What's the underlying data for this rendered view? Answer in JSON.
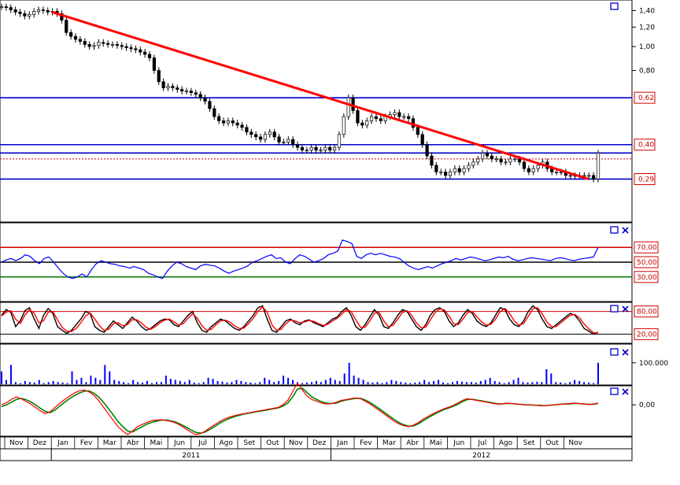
{
  "colors": {
    "background": "#ffffff",
    "trendline": "#ff0000",
    "hline": "#0000cc",
    "rsi": "#0000ff",
    "stoch_k": "#000000",
    "stoch_d": "#ff0000",
    "volume": "#0000ff",
    "macd": "#ff0000",
    "signal": "#008000",
    "ref_red": "#cc0000",
    "ref_green": "#007700",
    "candle_up": "#ffffff",
    "candle_down": "#000000"
  },
  "icons": {
    "maximize": "maximize-icon",
    "close": "close-icon"
  },
  "x_axis": {
    "months": [
      "Nov",
      "Dez",
      "Jan",
      "Fev",
      "Mar",
      "Abr",
      "Mai",
      "Jun",
      "Jul",
      "Ago",
      "Set",
      "Out",
      "Nov",
      "Dez",
      "Jan",
      "Fev",
      "Mar",
      "Abr",
      "Mai",
      "Jun",
      "Jul",
      "Ago",
      "Set",
      "Out",
      "Nov"
    ],
    "years": [
      "2011",
      "2012"
    ]
  },
  "chart_data": [
    {
      "type": "candlestick",
      "name": "price",
      "y_ticks": [
        "1,40",
        "1,20",
        "1,00",
        "0,80"
      ],
      "ylim": [
        0.2,
        1.5
      ],
      "log_scale": true,
      "level_labels": [
        "0,62",
        "0,40",
        "0,29"
      ],
      "hlines": [
        0.62,
        0.4,
        0.37,
        0.29
      ],
      "dotted_level": 0.35,
      "trendline": [
        {
          "date": "Jan 2011",
          "value": 1.38
        },
        {
          "date": "Nov 2012",
          "value": 0.29
        }
      ],
      "close": [
        1.45,
        1.44,
        1.41,
        1.38,
        1.36,
        1.33,
        1.35,
        1.39,
        1.41,
        1.4,
        1.38,
        1.39,
        1.36,
        1.28,
        1.14,
        1.1,
        1.07,
        1.05,
        1.02,
        1.0,
        1.01,
        1.04,
        1.03,
        1.02,
        1.02,
        1.01,
        1.0,
        0.99,
        0.98,
        0.97,
        0.95,
        0.93,
        0.9,
        0.8,
        0.72,
        0.68,
        0.69,
        0.68,
        0.67,
        0.66,
        0.66,
        0.65,
        0.64,
        0.62,
        0.6,
        0.56,
        0.52,
        0.5,
        0.49,
        0.5,
        0.49,
        0.48,
        0.47,
        0.45,
        0.44,
        0.43,
        0.42,
        0.44,
        0.45,
        0.43,
        0.41,
        0.41,
        0.42,
        0.4,
        0.39,
        0.38,
        0.38,
        0.39,
        0.38,
        0.38,
        0.39,
        0.38,
        0.39,
        0.44,
        0.52,
        0.62,
        0.55,
        0.49,
        0.48,
        0.5,
        0.52,
        0.51,
        0.5,
        0.52,
        0.53,
        0.54,
        0.52,
        0.52,
        0.51,
        0.47,
        0.44,
        0.4,
        0.36,
        0.33,
        0.31,
        0.31,
        0.3,
        0.31,
        0.32,
        0.31,
        0.32,
        0.33,
        0.34,
        0.35,
        0.37,
        0.36,
        0.35,
        0.35,
        0.34,
        0.34,
        0.35,
        0.35,
        0.34,
        0.32,
        0.31,
        0.32,
        0.33,
        0.34,
        0.32,
        0.31,
        0.31,
        0.31,
        0.3,
        0.3,
        0.3,
        0.3,
        0.3,
        0.3,
        0.29,
        0.37
      ]
    },
    {
      "type": "line",
      "name": "rsi",
      "reference_lines": [
        "70,00",
        "50,00",
        "30,00"
      ],
      "levels": [
        70,
        50,
        30
      ],
      "ylim": [
        0,
        100
      ],
      "values": [
        50,
        53,
        55,
        52,
        55,
        60,
        58,
        52,
        48,
        55,
        57,
        50,
        42,
        35,
        30,
        28,
        30,
        34,
        30,
        40,
        48,
        52,
        50,
        48,
        47,
        45,
        44,
        42,
        44,
        42,
        40,
        35,
        33,
        30,
        28,
        38,
        45,
        50,
        48,
        44,
        42,
        40,
        45,
        47,
        46,
        45,
        42,
        38,
        35,
        38,
        40,
        42,
        45,
        50,
        52,
        55,
        58,
        60,
        55,
        56,
        50,
        48,
        55,
        60,
        58,
        54,
        50,
        52,
        55,
        60,
        62,
        65,
        80,
        78,
        75,
        58,
        55,
        60,
        62,
        60,
        62,
        60,
        58,
        57,
        55,
        50,
        45,
        42,
        40,
        42,
        44,
        42,
        45,
        48,
        50,
        52,
        55,
        53,
        55,
        57,
        56,
        54,
        52,
        53,
        55,
        57,
        56,
        58,
        54,
        52,
        53,
        55,
        56,
        55,
        54,
        53,
        52,
        55,
        56,
        55,
        53,
        52,
        54,
        55,
        56,
        57,
        70
      ]
    },
    {
      "type": "line",
      "name": "stochastic",
      "reference_lines": [
        "80,00",
        "20,00"
      ],
      "levels": [
        80,
        20
      ],
      "ylim": [
        0,
        100
      ],
      "series": [
        {
          "name": "%K",
          "values": [
            70,
            85,
            78,
            40,
            55,
            82,
            90,
            60,
            35,
            70,
            88,
            75,
            40,
            30,
            22,
            30,
            45,
            60,
            80,
            75,
            40,
            30,
            25,
            40,
            55,
            45,
            35,
            50,
            65,
            55,
            40,
            30,
            35,
            45,
            55,
            60,
            58,
            45,
            40,
            55,
            70,
            80,
            50,
            30,
            25,
            40,
            50,
            60,
            55,
            45,
            35,
            30,
            40,
            55,
            70,
            90,
            95,
            60,
            30,
            25,
            40,
            55,
            60,
            50,
            45,
            55,
            58,
            50,
            45,
            40,
            50,
            60,
            65,
            80,
            90,
            70,
            40,
            30,
            45,
            65,
            85,
            70,
            40,
            35,
            50,
            70,
            85,
            80,
            60,
            40,
            30,
            45,
            70,
            85,
            90,
            80,
            55,
            40,
            50,
            70,
            85,
            75,
            55,
            45,
            40,
            50,
            70,
            90,
            85,
            60,
            45,
            40,
            55,
            80,
            95,
            85,
            60,
            40,
            35,
            45,
            55,
            65,
            75,
            70,
            55,
            35,
            28,
            20,
            25
          ]
        },
        {
          "name": "%D",
          "values": [
            68,
            78,
            82,
            60,
            48,
            70,
            85,
            75,
            50,
            55,
            78,
            80,
            58,
            38,
            28,
            27,
            35,
            50,
            68,
            76,
            60,
            42,
            30,
            33,
            48,
            50,
            42,
            45,
            58,
            58,
            50,
            38,
            33,
            40,
            50,
            57,
            60,
            52,
            44,
            48,
            62,
            74,
            62,
            42,
            30,
            33,
            45,
            55,
            57,
            52,
            42,
            35,
            36,
            48,
            62,
            80,
            92,
            78,
            45,
            30,
            33,
            48,
            57,
            55,
            50,
            52,
            56,
            54,
            48,
            43,
            46,
            55,
            62,
            73,
            85,
            80,
            58,
            38,
            38,
            55,
            75,
            78,
            55,
            40,
            43,
            60,
            77,
            82,
            70,
            50,
            37,
            38,
            58,
            77,
            87,
            84,
            68,
            48,
            45,
            60,
            77,
            80,
            66,
            52,
            44,
            46,
            60,
            80,
            88,
            75,
            55,
            44,
            48,
            67,
            87,
            90,
            74,
            52,
            40,
            40,
            50,
            60,
            70,
            72,
            63,
            47,
            34,
            24,
            23
          ]
        }
      ]
    },
    {
      "type": "bar",
      "name": "volume",
      "y_ticks": [
        "100.000"
      ],
      "ylim": [
        0,
        180000
      ],
      "values": [
        60000,
        20000,
        90000,
        10000,
        5000,
        15000,
        10000,
        8000,
        20000,
        5000,
        10000,
        15000,
        10000,
        8000,
        5000,
        60000,
        20000,
        30000,
        10000,
        40000,
        30000,
        20000,
        90000,
        60000,
        20000,
        15000,
        10000,
        5000,
        20000,
        10000,
        8000,
        15000,
        5000,
        10000,
        10000,
        40000,
        25000,
        20000,
        15000,
        10000,
        20000,
        8000,
        5000,
        10000,
        30000,
        25000,
        15000,
        12000,
        8000,
        10000,
        20000,
        15000,
        10000,
        8000,
        5000,
        10000,
        30000,
        20000,
        10000,
        15000,
        40000,
        30000,
        20000,
        10000,
        5000,
        8000,
        10000,
        15000,
        10000,
        20000,
        30000,
        20000,
        15000,
        50000,
        100000,
        40000,
        30000,
        20000,
        10000,
        8000,
        10000,
        5000,
        10000,
        20000,
        15000,
        10000,
        8000,
        5000,
        8000,
        10000,
        20000,
        10000,
        15000,
        20000,
        8000,
        5000,
        10000,
        15000,
        12000,
        10000,
        10000,
        8000,
        15000,
        20000,
        30000,
        15000,
        10000,
        5000,
        10000,
        20000,
        30000,
        10000,
        8000,
        10000,
        12000,
        10000,
        70000,
        50000,
        10000,
        8000,
        5000,
        10000,
        20000,
        15000,
        10000,
        8000,
        5000,
        100000
      ]
    },
    {
      "type": "line",
      "name": "macd",
      "y_ticks": [
        "0,00"
      ],
      "ylim": [
        -0.07,
        0.04
      ],
      "series": [
        {
          "name": "macd",
          "values": [
            0.0,
            0.005,
            0.012,
            0.018,
            0.014,
            0.008,
            0.002,
            -0.006,
            -0.014,
            -0.02,
            -0.016,
            -0.006,
            0.004,
            0.012,
            0.02,
            0.027,
            0.032,
            0.034,
            0.03,
            0.022,
            0.01,
            -0.005,
            -0.02,
            -0.035,
            -0.05,
            -0.06,
            -0.068,
            -0.06,
            -0.05,
            -0.045,
            -0.04,
            -0.036,
            -0.035,
            -0.034,
            -0.036,
            -0.038,
            -0.042,
            -0.048,
            -0.055,
            -0.062,
            -0.068,
            -0.066,
            -0.06,
            -0.052,
            -0.045,
            -0.038,
            -0.032,
            -0.028,
            -0.025,
            -0.022,
            -0.02,
            -0.018,
            -0.016,
            -0.014,
            -0.012,
            -0.01,
            -0.008,
            -0.006,
            0.0,
            0.01,
            0.03,
            0.05,
            0.034,
            0.02,
            0.012,
            0.008,
            0.004,
            0.002,
            0.003,
            0.006,
            0.01,
            0.012,
            0.014,
            0.016,
            0.014,
            0.008,
            0.002,
            -0.006,
            -0.014,
            -0.022,
            -0.03,
            -0.038,
            -0.044,
            -0.048,
            -0.05,
            -0.046,
            -0.04,
            -0.032,
            -0.026,
            -0.02,
            -0.015,
            -0.01,
            -0.006,
            -0.002,
            0.004,
            0.01,
            0.014,
            0.012,
            0.01,
            0.008,
            0.006,
            0.004,
            0.002,
            0.002,
            0.004,
            0.003,
            0.002,
            0.001,
            0.0,
            0.0,
            -0.001,
            -0.002,
            -0.002,
            -0.001,
            0.0,
            0.001,
            0.002,
            0.003,
            0.004,
            0.003,
            0.002,
            0.001,
            0.002,
            0.004
          ]
        },
        {
          "name": "signal",
          "values": [
            -0.004,
            0.0,
            0.006,
            0.012,
            0.015,
            0.012,
            0.007,
            0.0,
            -0.008,
            -0.015,
            -0.018,
            -0.012,
            -0.003,
            0.006,
            0.014,
            0.021,
            0.027,
            0.031,
            0.032,
            0.027,
            0.018,
            0.006,
            -0.008,
            -0.023,
            -0.038,
            -0.05,
            -0.06,
            -0.062,
            -0.056,
            -0.05,
            -0.044,
            -0.04,
            -0.037,
            -0.035,
            -0.035,
            -0.037,
            -0.04,
            -0.045,
            -0.051,
            -0.057,
            -0.063,
            -0.065,
            -0.062,
            -0.056,
            -0.049,
            -0.042,
            -0.036,
            -0.031,
            -0.027,
            -0.024,
            -0.021,
            -0.019,
            -0.017,
            -0.015,
            -0.013,
            -0.011,
            -0.009,
            -0.007,
            -0.003,
            0.004,
            0.018,
            0.036,
            0.038,
            0.028,
            0.018,
            0.012,
            0.007,
            0.004,
            0.003,
            0.004,
            0.008,
            0.011,
            0.013,
            0.015,
            0.015,
            0.011,
            0.005,
            -0.002,
            -0.01,
            -0.018,
            -0.026,
            -0.034,
            -0.041,
            -0.046,
            -0.049,
            -0.048,
            -0.043,
            -0.036,
            -0.029,
            -0.023,
            -0.017,
            -0.012,
            -0.008,
            -0.004,
            0.001,
            0.007,
            0.012,
            0.013,
            0.011,
            0.009,
            0.007,
            0.005,
            0.003,
            0.002,
            0.003,
            0.003,
            0.002,
            0.001,
            0.0,
            0.0,
            -0.001,
            -0.001,
            -0.002,
            -0.001,
            0.0,
            0.001,
            0.002,
            0.002,
            0.003,
            0.003,
            0.002,
            0.001,
            0.001,
            0.003
          ]
        }
      ]
    }
  ]
}
